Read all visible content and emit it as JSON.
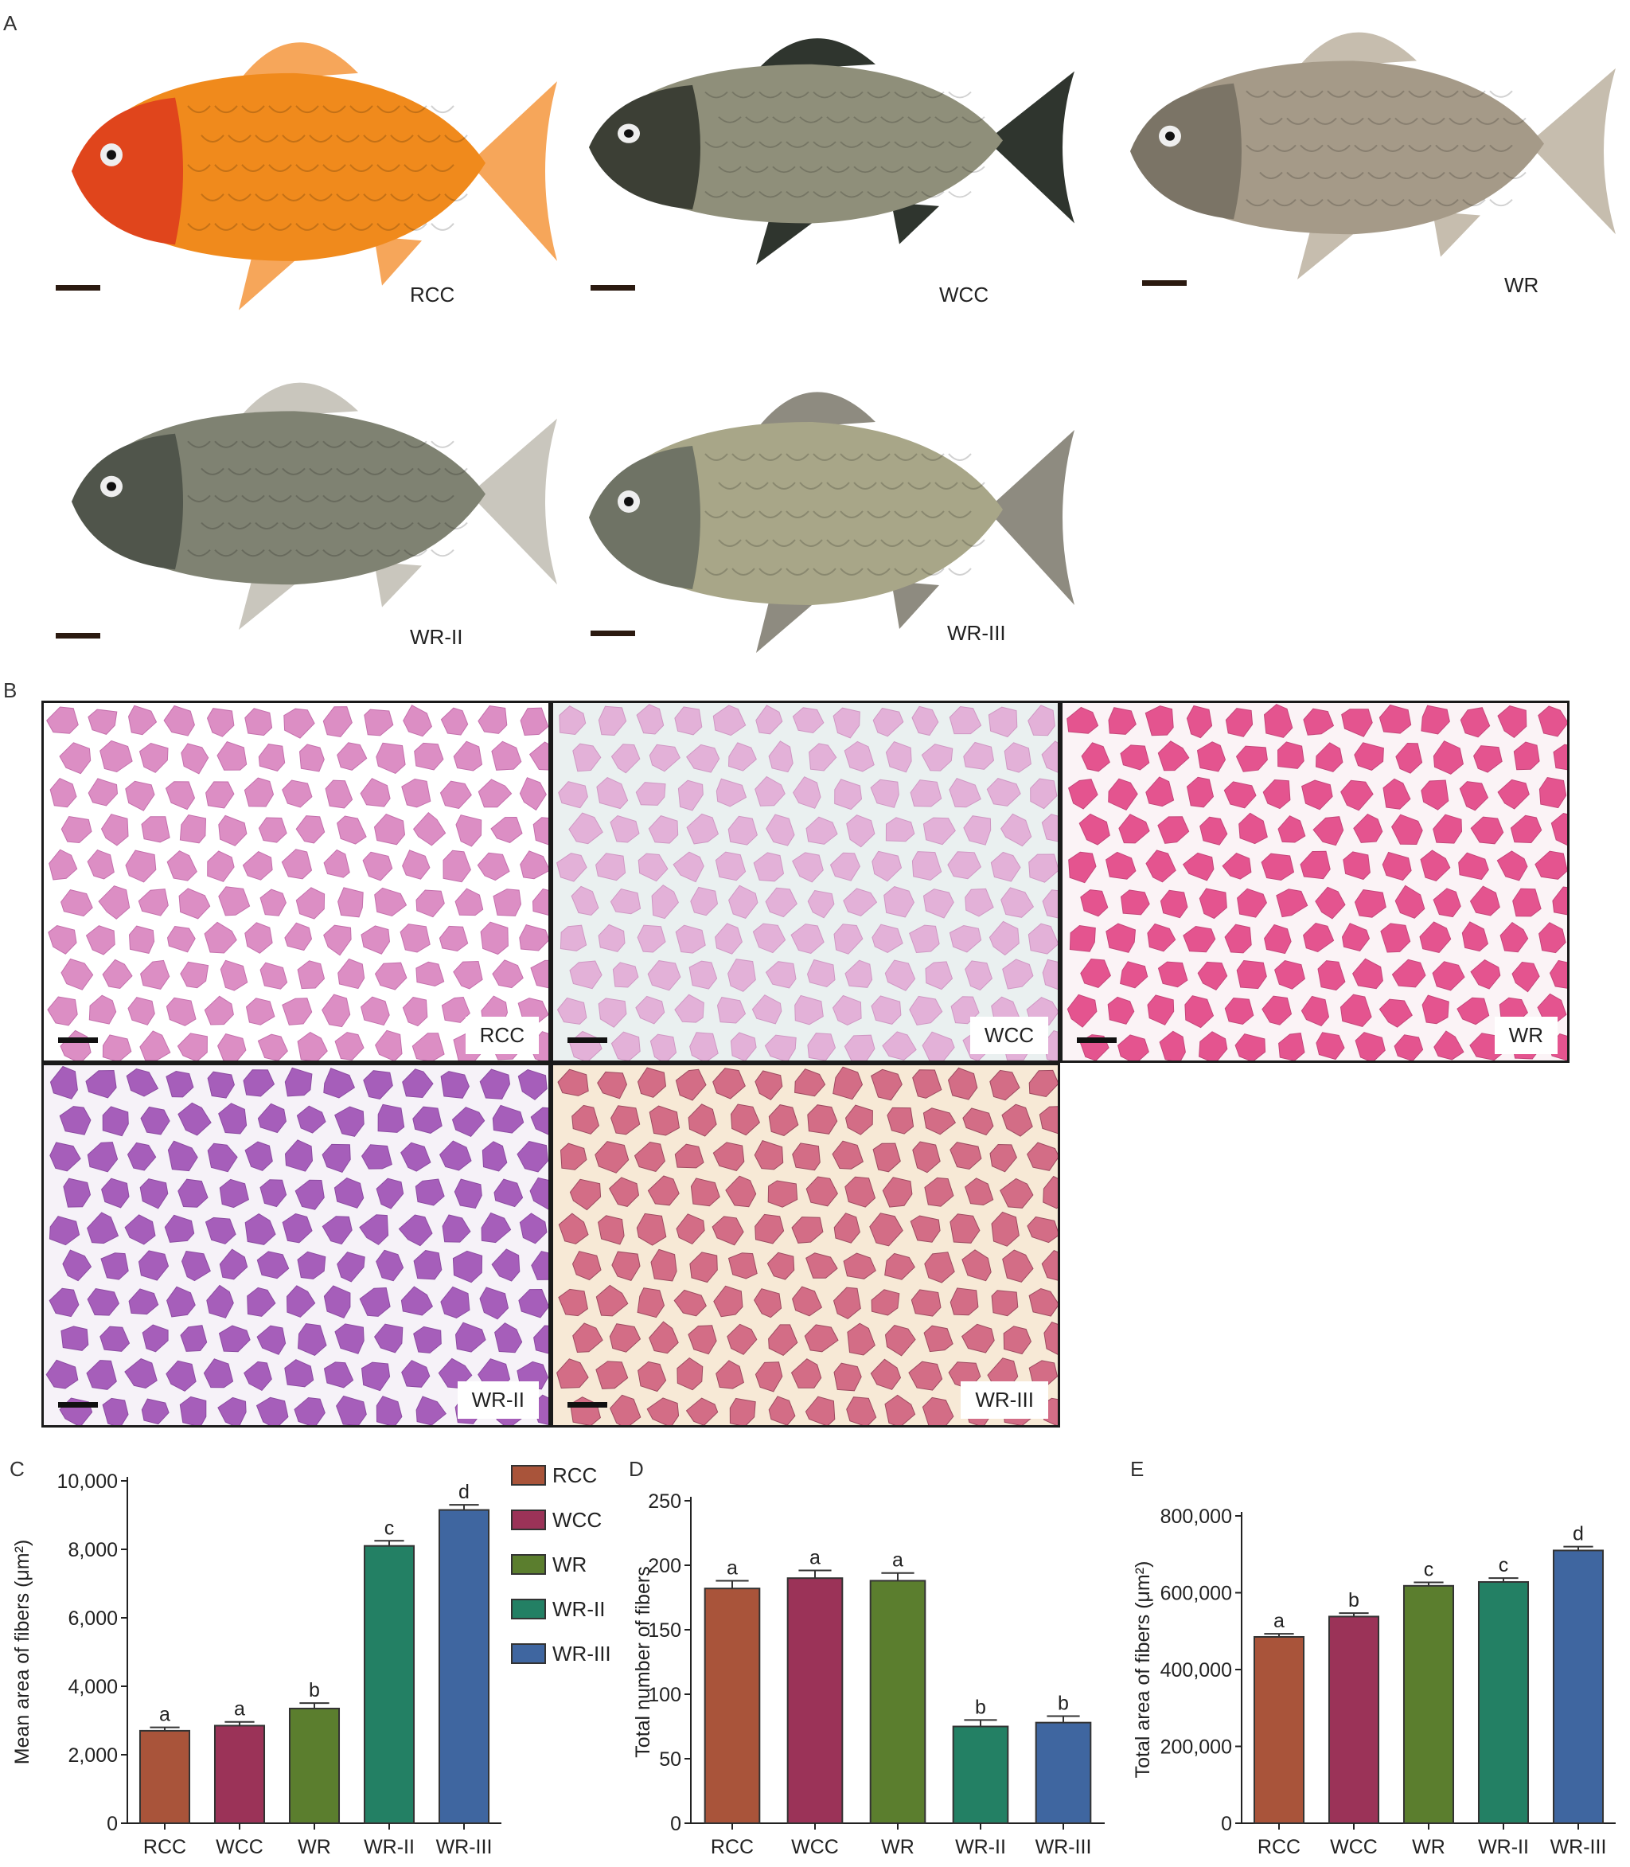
{
  "panels": {
    "a": "A",
    "b": "B",
    "c": "C",
    "d": "D",
    "e": "E"
  },
  "fish": [
    {
      "label": "RCC",
      "body": "#f08a1c",
      "fin": "#f6a65a",
      "head": "#e0451c"
    },
    {
      "label": "WCC",
      "body": "#8f8f7a",
      "fin": "#2f352e",
      "head": "#3c3f35"
    },
    {
      "label": "WR",
      "body": "#a59a88",
      "fin": "#c6bdae",
      "head": "#7b7466"
    },
    {
      "label": "WR-II",
      "body": "#7f8272",
      "fin": "#c9c6bd",
      "head": "#50554b"
    },
    {
      "label": "WR-III",
      "body": "#a8a688",
      "fin": "#8e8b80",
      "head": "#6f7365"
    }
  ],
  "histology": [
    {
      "label": "RCC",
      "bg": "#ffffff",
      "cell": "#dc8ec4",
      "edge": "#c46fac"
    },
    {
      "label": "WCC",
      "bg": "#eaf0f0",
      "cell": "#e3b1d8",
      "edge": "#cf97c3"
    },
    {
      "label": "WR",
      "bg": "#fbf3f6",
      "cell": "#e4548f",
      "edge": "#c6457a"
    },
    {
      "label": "WR-II",
      "bg": "#f6f2f8",
      "cell": "#a65eba",
      "edge": "#8c4aa2"
    },
    {
      "label": "WR-III",
      "bg": "#f7e9d6",
      "cell": "#d36d86",
      "edge": "#9e4a60"
    }
  ],
  "legend": [
    {
      "label": "RCC",
      "color": "#a9543a"
    },
    {
      "label": "WCC",
      "color": "#9b3358"
    },
    {
      "label": "WR",
      "color": "#5b7e2e"
    },
    {
      "label": "WR-II",
      "color": "#238064"
    },
    {
      "label": "WR-III",
      "color": "#3f66a0"
    }
  ],
  "chart_data": [
    {
      "type": "bar",
      "categories": [
        "RCC",
        "WCC",
        "WR",
        "WR-II",
        "WR-III"
      ],
      "values": [
        2700,
        2850,
        3350,
        8100,
        9150
      ],
      "errors": [
        100,
        110,
        160,
        150,
        150
      ],
      "letters": [
        "a",
        "a",
        "b",
        "c",
        "d"
      ],
      "ylabel": "Mean area of fibers (μm²)",
      "ylim": [
        0,
        10000
      ],
      "ticks": [
        "0",
        "2,000",
        "4,000",
        "6,000",
        "8,000",
        "10,000"
      ],
      "tick_values": [
        0,
        2000,
        4000,
        6000,
        8000,
        10000
      ]
    },
    {
      "type": "bar",
      "categories": [
        "RCC",
        "WCC",
        "WR",
        "WR-II",
        "WR-III"
      ],
      "values": [
        182,
        190,
        188,
        75,
        78
      ],
      "errors": [
        6,
        6,
        6,
        5,
        5
      ],
      "letters": [
        "a",
        "a",
        "a",
        "b",
        "b"
      ],
      "ylabel": "Total number of fibers",
      "ylim": [
        0,
        250
      ],
      "ticks": [
        "0",
        "50",
        "100",
        "150",
        "200",
        "250"
      ],
      "tick_values": [
        0,
        50,
        100,
        150,
        200,
        250
      ]
    },
    {
      "type": "bar",
      "categories": [
        "RCC",
        "WCC",
        "WR",
        "WR-II",
        "WR-III"
      ],
      "values": [
        485000,
        538000,
        618000,
        628000,
        710000
      ],
      "errors": [
        8000,
        9000,
        9000,
        10000,
        10000
      ],
      "letters": [
        "a",
        "b",
        "c",
        "c",
        "d"
      ],
      "ylabel": "Total area of fibers (μm²)",
      "ylim": [
        0,
        800000
      ],
      "ticks": [
        "0",
        "200,000",
        "400,000",
        "600,000",
        "800,000"
      ],
      "tick_values": [
        0,
        200000,
        400000,
        600000,
        800000
      ]
    }
  ]
}
